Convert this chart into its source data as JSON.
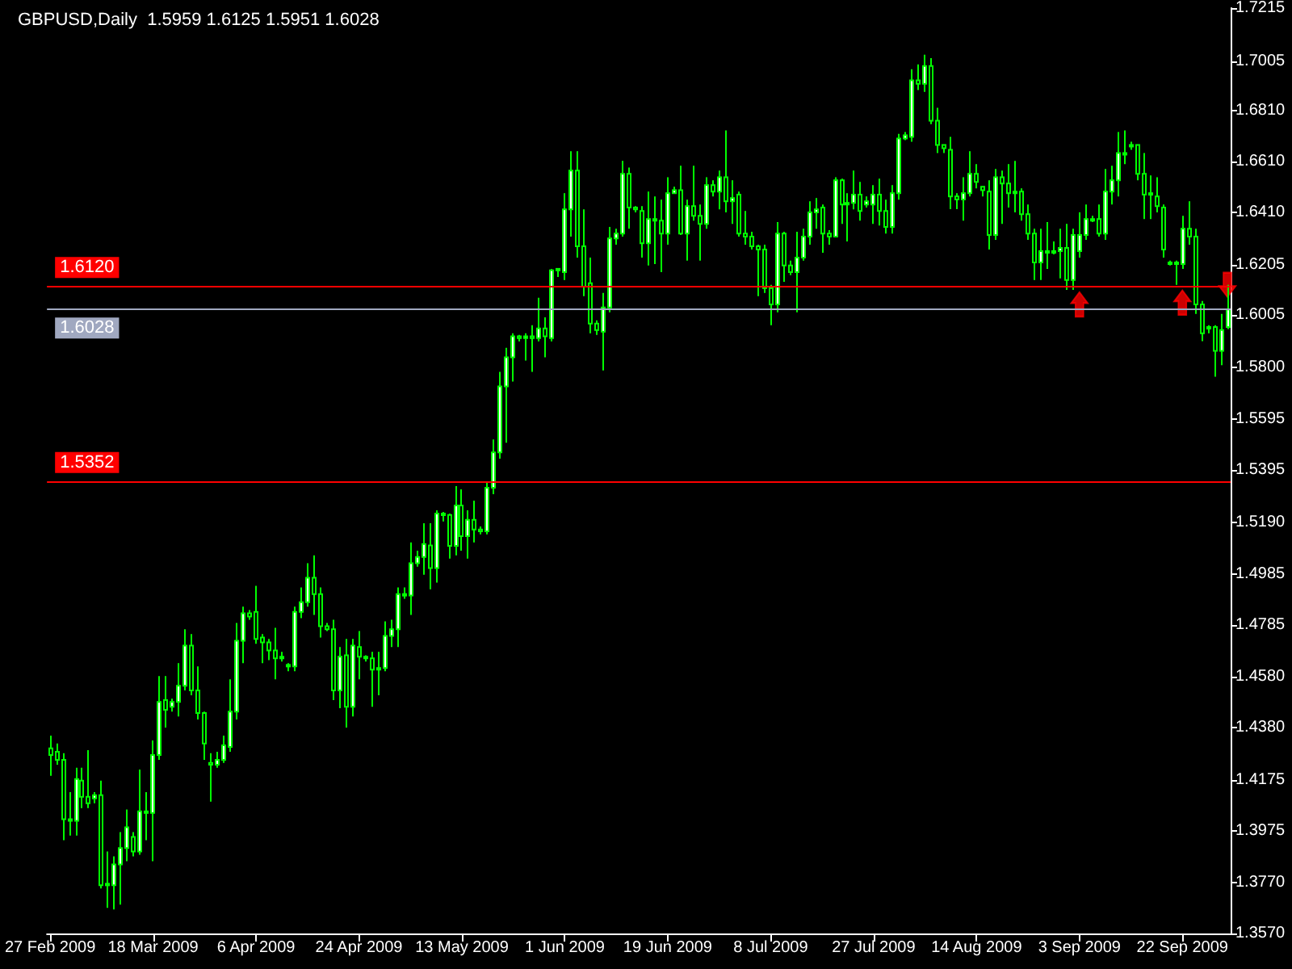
{
  "chart_data": {
    "type": "candlestick",
    "title": "GBPUSD,Daily  1.5959 1.6125 1.5951 1.6028",
    "categories": [
      "27 Feb 2009",
      null,
      null,
      null,
      null,
      null,
      null,
      null,
      null,
      null,
      null,
      null,
      null,
      null,
      null,
      null,
      "18 Mar 2009",
      null,
      null,
      null,
      null,
      null,
      null,
      null,
      null,
      null,
      null,
      null,
      null,
      null,
      null,
      null,
      "6 Apr 2009",
      null,
      null,
      null,
      null,
      null,
      null,
      null,
      null,
      null,
      null,
      null,
      null,
      null,
      null,
      null,
      "24 Apr 2009",
      null,
      null,
      null,
      null,
      null,
      null,
      null,
      null,
      null,
      null,
      null,
      null,
      null,
      null,
      null,
      "13 May 2009",
      null,
      null,
      null,
      null,
      null,
      null,
      null,
      null,
      null,
      null,
      null,
      null,
      null,
      null,
      null,
      "1 Jun 2009",
      null,
      null,
      null,
      null,
      null,
      null,
      null,
      null,
      null,
      null,
      null,
      null,
      null,
      null,
      null,
      "19 Jun 2009",
      null,
      null,
      null,
      null,
      null,
      null,
      null,
      null,
      null,
      null,
      null,
      null,
      null,
      null,
      null,
      "8 Jul 2009",
      null,
      null,
      null,
      null,
      null,
      null,
      null,
      null,
      null,
      null,
      null,
      null,
      null,
      null,
      null,
      "27 Jul 2009",
      null,
      null,
      null,
      null,
      null,
      null,
      null,
      null,
      null,
      null,
      null,
      null,
      null,
      null,
      null,
      "14 Aug 2009",
      null,
      null,
      null,
      null,
      null,
      null,
      null,
      null,
      null,
      null,
      null,
      null,
      null,
      null,
      null,
      "3 Sep 2009",
      null,
      null,
      null,
      null,
      null,
      null,
      null,
      null,
      null,
      null,
      null,
      null,
      null,
      null,
      null,
      "22 Sep 2009",
      null,
      null,
      null,
      null,
      null,
      null,
      null
    ],
    "color": "#00ff00",
    "ohlc": [
      [
        1.4299,
        1.4349,
        1.4191,
        1.4273
      ],
      [
        1.4286,
        1.4318,
        1.4235,
        1.4254
      ],
      [
        1.4254,
        1.428,
        1.3937,
        1.402
      ],
      [
        1.402,
        1.4127,
        1.3956,
        1.4014
      ],
      [
        1.4014,
        1.4223,
        1.3956,
        1.4178
      ],
      [
        1.4172,
        1.4223,
        1.4064,
        1.4108
      ],
      [
        1.4108,
        1.4292,
        1.4064,
        1.4083
      ],
      [
        1.4102,
        1.4127,
        1.4083,
        1.4115
      ],
      [
        1.4115,
        1.4172,
        1.3747,
        1.376
      ],
      [
        1.376,
        1.3893,
        1.3671,
        1.3766
      ],
      [
        1.376,
        1.3874,
        1.3665,
        1.3842
      ],
      [
        1.3842,
        1.3969,
        1.3684,
        1.3906
      ],
      [
        1.3906,
        1.4058,
        1.3855,
        1.3988
      ],
      [
        1.395,
        1.3969,
        1.3874,
        1.3893
      ],
      [
        1.3893,
        1.4216,
        1.388,
        1.4051
      ],
      [
        1.4051,
        1.4127,
        1.3937,
        1.4045
      ],
      [
        1.4045,
        1.433,
        1.3855,
        1.4273
      ],
      [
        1.4273,
        1.4584,
        1.4254,
        1.4482
      ],
      [
        1.4489,
        1.4584,
        1.4381,
        1.4451
      ],
      [
        1.4463,
        1.4495,
        1.4444,
        1.4482
      ],
      [
        1.4482,
        1.4635,
        1.4425,
        1.4546
      ],
      [
        1.4546,
        1.4768,
        1.4527,
        1.4704
      ],
      [
        1.4704,
        1.4749,
        1.4508,
        1.4527
      ],
      [
        1.4527,
        1.4622,
        1.4413,
        1.4438
      ],
      [
        1.4438,
        1.4444,
        1.4254,
        1.4318
      ],
      [
        1.4242,
        1.428,
        1.4089,
        1.4235
      ],
      [
        1.4235,
        1.4286,
        1.4223,
        1.4254
      ],
      [
        1.4254,
        1.4349,
        1.4242,
        1.4311
      ],
      [
        1.4305,
        1.4571,
        1.4286,
        1.4444
      ],
      [
        1.4444,
        1.4793,
        1.4413,
        1.4723
      ],
      [
        1.4723,
        1.4857,
        1.4635,
        1.4831
      ],
      [
        1.4831,
        1.4844,
        1.4806,
        1.4818
      ],
      [
        1.4837,
        1.4939,
        1.4711,
        1.473
      ],
      [
        1.4736,
        1.4749,
        1.4635,
        1.4717
      ],
      [
        1.4717,
        1.473,
        1.4647,
        1.4685
      ],
      [
        1.4685,
        1.4774,
        1.4571,
        1.4654
      ],
      [
        1.4654,
        1.4679,
        1.4641,
        1.466
      ],
      [
        1.4628,
        1.4635,
        1.4603,
        1.4622
      ],
      [
        1.4622,
        1.4857,
        1.4603,
        1.4837
      ],
      [
        1.4837,
        1.4933,
        1.4812,
        1.4875
      ],
      [
        1.4875,
        1.5028,
        1.4857,
        1.4971
      ],
      [
        1.4971,
        1.5059,
        1.4825,
        1.4907
      ],
      [
        1.4907,
        1.4933,
        1.4736,
        1.478
      ],
      [
        1.478,
        1.4793,
        1.4761,
        1.4768
      ],
      [
        1.4768,
        1.4806,
        1.4489,
        1.4527
      ],
      [
        1.4527,
        1.4698,
        1.4457,
        1.466
      ],
      [
        1.4666,
        1.473,
        1.4381,
        1.4463
      ],
      [
        1.4463,
        1.473,
        1.4425,
        1.4704
      ],
      [
        1.4698,
        1.4761,
        1.4571,
        1.466
      ],
      [
        1.466,
        1.4666,
        1.4641,
        1.4654
      ],
      [
        1.4654,
        1.4679,
        1.4463,
        1.4609
      ],
      [
        1.4609,
        1.4679,
        1.4508,
        1.4616
      ],
      [
        1.4616,
        1.4799,
        1.4603,
        1.4742
      ],
      [
        1.4742,
        1.4806,
        1.4698,
        1.4768
      ],
      [
        1.4768,
        1.4933,
        1.4698,
        1.4907
      ],
      [
        1.4907,
        1.4933,
        1.4888,
        1.4901
      ],
      [
        1.4901,
        1.511,
        1.4825,
        1.5028
      ],
      [
        1.5028,
        1.5078,
        1.5015,
        1.5053
      ],
      [
        1.5053,
        1.5186,
        1.4983,
        1.5104
      ],
      [
        1.5098,
        1.5186,
        1.4926,
        1.5009
      ],
      [
        1.5009,
        1.5237,
        1.4952,
        1.5224
      ],
      [
        1.5224,
        1.523,
        1.5193,
        1.5218
      ],
      [
        1.5218,
        1.5224,
        1.5047,
        1.5097
      ],
      [
        1.5097,
        1.5332,
        1.5059,
        1.5256
      ],
      [
        1.5256,
        1.5319,
        1.5078,
        1.5135
      ],
      [
        1.5135,
        1.5237,
        1.5047,
        1.5199
      ],
      [
        1.5199,
        1.5275,
        1.511,
        1.5161
      ],
      [
        1.5161,
        1.5173,
        1.5142,
        1.5154
      ],
      [
        1.5154,
        1.5351,
        1.5142,
        1.5326
      ],
      [
        1.5326,
        1.5516,
        1.53,
        1.5465
      ],
      [
        1.5465,
        1.5782,
        1.544,
        1.5725
      ],
      [
        1.5725,
        1.5877,
        1.5503,
        1.5839
      ],
      [
        1.5839,
        1.5934,
        1.5744,
        1.5922
      ],
      [
        1.5922,
        1.5928,
        1.5902,
        1.5915
      ],
      [
        1.5915,
        1.5934,
        1.5827,
        1.5922
      ],
      [
        1.5922,
        1.5966,
        1.5782,
        1.5915
      ],
      [
        1.5915,
        1.6074,
        1.5902,
        1.5953
      ],
      [
        1.5953,
        1.5997,
        1.5839,
        1.5922
      ],
      [
        1.5915,
        1.6188,
        1.5902,
        1.6182
      ],
      [
        1.6182,
        1.6188,
        1.6156,
        1.6188
      ],
      [
        1.6175,
        1.6486,
        1.6144,
        1.6422
      ],
      [
        1.6422,
        1.6651,
        1.6315,
        1.6575
      ],
      [
        1.6575,
        1.6651,
        1.6232,
        1.6277
      ],
      [
        1.6277,
        1.6422,
        1.608,
        1.6118
      ],
      [
        1.6131,
        1.6232,
        1.5934,
        1.5972
      ],
      [
        1.5972,
        1.5985,
        1.5928,
        1.5947
      ],
      [
        1.594,
        1.6093,
        1.5788,
        1.6036
      ],
      [
        1.6036,
        1.6353,
        1.6017,
        1.6308
      ],
      [
        1.6308,
        1.6346,
        1.6283,
        1.6327
      ],
      [
        1.6327,
        1.6613,
        1.6315,
        1.6562
      ],
      [
        1.6562,
        1.6587,
        1.6346,
        1.6429
      ],
      [
        1.6429,
        1.6435,
        1.641,
        1.6422
      ],
      [
        1.6416,
        1.6435,
        1.6232,
        1.6289
      ],
      [
        1.6289,
        1.6492,
        1.6201,
        1.6384
      ],
      [
        1.6384,
        1.6473,
        1.6207,
        1.6378
      ],
      [
        1.6378,
        1.646,
        1.6175,
        1.6327
      ],
      [
        1.6327,
        1.6549,
        1.6283,
        1.6486
      ],
      [
        1.6486,
        1.6511,
        1.6486,
        1.6498
      ],
      [
        1.6498,
        1.6594,
        1.6321,
        1.6327
      ],
      [
        1.6327,
        1.646,
        1.622,
        1.6435
      ],
      [
        1.6435,
        1.6594,
        1.6378,
        1.6397
      ],
      [
        1.6397,
        1.6441,
        1.622,
        1.6365
      ],
      [
        1.6365,
        1.6549,
        1.6346,
        1.6518
      ],
      [
        1.6518,
        1.6537,
        1.6473,
        1.6492
      ],
      [
        1.6492,
        1.6575,
        1.6422,
        1.6549
      ],
      [
        1.6549,
        1.6733,
        1.641,
        1.6454
      ],
      [
        1.6454,
        1.6537,
        1.6365,
        1.6467
      ],
      [
        1.648,
        1.6492,
        1.6315,
        1.6327
      ],
      [
        1.6327,
        1.6416,
        1.6283,
        1.6315
      ],
      [
        1.6315,
        1.6334,
        1.6264,
        1.6277
      ],
      [
        1.6277,
        1.6283,
        1.608,
        1.6264
      ],
      [
        1.6264,
        1.6283,
        1.6093,
        1.6112
      ],
      [
        1.6112,
        1.6125,
        1.5966,
        1.6048
      ],
      [
        1.6048,
        1.6372,
        1.6017,
        1.6327
      ],
      [
        1.6327,
        1.6334,
        1.6137,
        1.6201
      ],
      [
        1.6201,
        1.622,
        1.6163,
        1.6175
      ],
      [
        1.6175,
        1.6334,
        1.6017,
        1.6232
      ],
      [
        1.6232,
        1.6346,
        1.622,
        1.6315
      ],
      [
        1.6315,
        1.6454,
        1.6283,
        1.641
      ],
      [
        1.641,
        1.6467,
        1.6346,
        1.6422
      ],
      [
        1.6429,
        1.6441,
        1.6251,
        1.6327
      ],
      [
        1.6327,
        1.634,
        1.6283,
        1.6315
      ],
      [
        1.6315,
        1.6549,
        1.6315,
        1.6537
      ],
      [
        1.6537,
        1.6543,
        1.6365,
        1.6441
      ],
      [
        1.6441,
        1.6486,
        1.6296,
        1.6448
      ],
      [
        1.6448,
        1.6575,
        1.6422,
        1.648
      ],
      [
        1.648,
        1.653,
        1.6378,
        1.6416
      ],
      [
        1.6441,
        1.6473,
        1.6429,
        1.6454
      ],
      [
        1.6441,
        1.6518,
        1.6365,
        1.648
      ],
      [
        1.648,
        1.6543,
        1.6359,
        1.6416
      ],
      [
        1.6416,
        1.646,
        1.6327,
        1.6353
      ],
      [
        1.6353,
        1.6518,
        1.6327,
        1.6486
      ],
      [
        1.6486,
        1.672,
        1.646,
        1.6701
      ],
      [
        1.6701,
        1.6727,
        1.6695,
        1.6714
      ],
      [
        1.6708,
        1.6974,
        1.6689,
        1.693
      ],
      [
        1.693,
        1.6993,
        1.6892,
        1.6917
      ],
      [
        1.6917,
        1.7031,
        1.6885,
        1.6987
      ],
      [
        1.6987,
        1.7018,
        1.6758,
        1.6771
      ],
      [
        1.6771,
        1.6822,
        1.6644,
        1.6676
      ],
      [
        1.6676,
        1.6676,
        1.6644,
        1.6663
      ],
      [
        1.6657,
        1.6708,
        1.6423,
        1.6473
      ],
      [
        1.6473,
        1.6486,
        1.6423,
        1.6461
      ],
      [
        1.6461,
        1.6549,
        1.6378,
        1.6486
      ],
      [
        1.6486,
        1.6651,
        1.6473,
        1.6562
      ],
      [
        1.6562,
        1.66,
        1.6505,
        1.653
      ],
      [
        1.6511,
        1.6511,
        1.6473,
        1.6498
      ],
      [
        1.6492,
        1.6537,
        1.6264,
        1.6321
      ],
      [
        1.6321,
        1.6581,
        1.6302,
        1.6549
      ],
      [
        1.6549,
        1.6575,
        1.6365,
        1.6524
      ],
      [
        1.6524,
        1.66,
        1.6429,
        1.6486
      ],
      [
        1.6486,
        1.6613,
        1.641,
        1.6492
      ],
      [
        1.6492,
        1.6505,
        1.6378,
        1.6403
      ],
      [
        1.6403,
        1.6441,
        1.6302,
        1.6327
      ],
      [
        1.6327,
        1.6346,
        1.6144,
        1.6213
      ],
      [
        1.6213,
        1.6346,
        1.6144,
        1.6258
      ],
      [
        1.6258,
        1.6372,
        1.6188,
        1.6251
      ],
      [
        1.6251,
        1.6296,
        1.6245,
        1.6258
      ],
      [
        1.6258,
        1.6346,
        1.615,
        1.627
      ],
      [
        1.627,
        1.6365,
        1.6105,
        1.6144
      ],
      [
        1.6144,
        1.6346,
        1.6105,
        1.6321
      ],
      [
        1.6258,
        1.641,
        1.6232,
        1.6321
      ],
      [
        1.6321,
        1.6441,
        1.6302,
        1.6384
      ],
      [
        1.6384,
        1.6397,
        1.6372,
        1.6378
      ],
      [
        1.6384,
        1.6441,
        1.6315,
        1.6327
      ],
      [
        1.6327,
        1.6581,
        1.6302,
        1.6492
      ],
      [
        1.6492,
        1.6594,
        1.6441,
        1.6537
      ],
      [
        1.6537,
        1.6727,
        1.6473,
        1.6644
      ],
      [
        1.6644,
        1.6733,
        1.66,
        1.6638
      ],
      [
        1.6676,
        1.6689,
        1.6657,
        1.667
      ],
      [
        1.6676,
        1.6676,
        1.6537,
        1.6562
      ],
      [
        1.6562,
        1.6644,
        1.6384,
        1.648
      ],
      [
        1.648,
        1.6556,
        1.6384,
        1.6486
      ],
      [
        1.6473,
        1.6549,
        1.641,
        1.6435
      ],
      [
        1.6429,
        1.6441,
        1.6232,
        1.6264
      ],
      [
        1.6213,
        1.622,
        1.6201,
        1.6207
      ],
      [
        1.6207,
        1.622,
        1.6125,
        1.6213
      ],
      [
        1.6207,
        1.6397,
        1.6188,
        1.6346
      ],
      [
        1.6346,
        1.6454,
        1.6283,
        1.6315
      ],
      [
        1.6315,
        1.6346,
        1.601,
        1.6048
      ],
      [
        1.6048,
        1.6061,
        1.5903,
        1.5934
      ],
      [
        1.5953,
        1.5966,
        1.5934,
        1.5959
      ],
      [
        1.5959,
        1.5966,
        1.5763,
        1.5865
      ],
      [
        1.5865,
        1.601,
        1.5808,
        1.5947
      ],
      [
        1.5959,
        1.6125,
        1.5951,
        1.6028
      ]
    ],
    "series": [
      {
        "type": "scatter",
        "color": "#ff0000",
        "values": [
          null,
          null,
          null,
          null,
          null,
          null,
          null,
          null,
          null,
          null,
          null,
          null,
          null,
          null,
          null,
          null,
          null,
          null,
          null,
          null,
          null,
          null,
          null,
          null,
          null,
          null,
          null,
          null,
          null,
          null,
          null,
          null,
          null,
          null,
          null,
          null,
          null,
          null,
          null,
          null,
          null,
          null,
          null,
          null,
          null,
          null,
          null,
          null,
          null,
          null,
          null,
          null,
          null,
          null,
          null,
          null,
          null,
          null,
          null,
          null,
          null,
          null,
          null,
          null,
          null,
          null,
          null,
          null,
          null,
          null,
          null,
          null,
          null,
          null,
          null,
          null,
          null,
          null,
          null,
          null,
          null,
          null,
          null,
          null,
          null,
          null,
          null,
          null,
          null,
          null,
          null,
          null,
          null,
          null,
          null,
          null,
          null,
          null,
          null,
          null,
          null,
          null,
          null,
          null,
          null,
          null,
          null,
          null,
          null,
          null,
          null,
          null,
          null,
          null,
          null,
          null,
          null,
          null,
          null,
          null,
          null,
          null,
          null,
          null,
          null,
          null,
          null,
          null,
          null,
          null,
          null,
          null,
          null,
          null,
          null,
          null,
          null,
          null,
          null,
          null,
          null,
          null,
          null,
          null,
          null,
          null,
          null,
          null,
          null,
          null,
          null,
          null,
          null,
          null,
          null,
          null,
          null,
          null,
          null,
          null,
          1.6048,
          null,
          null,
          null,
          null,
          null,
          null,
          null,
          null,
          null,
          null,
          null,
          null,
          null,
          null,
          null,
          1.6055,
          null,
          null,
          null,
          null,
          null,
          null,
          1.6125
        ]
      }
    ],
    "ylim": [
      1.357,
      1.7215
    ],
    "yticks": [
      {
        "value": 1.357,
        "label": "1.3570"
      },
      {
        "value": 1.377,
        "label": "1.3770"
      },
      {
        "value": 1.3975,
        "label": "1.3975"
      },
      {
        "value": 1.4175,
        "label": "1.4175"
      },
      {
        "value": 1.438,
        "label": "1.4380"
      },
      {
        "value": 1.458,
        "label": "1.4580"
      },
      {
        "value": 1.4785,
        "label": "1.4785"
      },
      {
        "value": 1.4985,
        "label": "1.4985"
      },
      {
        "value": 1.519,
        "label": "1.5190"
      },
      {
        "value": 1.5395,
        "label": "1.5395"
      },
      {
        "value": 1.5595,
        "label": "1.5595"
      },
      {
        "value": 1.58,
        "label": "1.5800"
      },
      {
        "value": 1.6005,
        "label": "1.6005"
      },
      {
        "value": 1.6205,
        "label": "1.6205"
      },
      {
        "value": 1.641,
        "label": "1.6410"
      },
      {
        "value": 1.661,
        "label": "1.6610"
      },
      {
        "value": 1.681,
        "label": "1.6810"
      },
      {
        "value": 1.7005,
        "label": "1.7005"
      },
      {
        "value": 1.7215,
        "label": "1.7215"
      }
    ],
    "ref_lines": [
      {
        "axis": "y",
        "value": 1.612,
        "label": "1.6120",
        "color": "#ff0000"
      },
      {
        "axis": "y",
        "value": 1.6028,
        "label": "1.6028",
        "color": "#a0a8c0"
      },
      {
        "axis": "y",
        "value": 1.5352,
        "label": "1.5352",
        "color": "#ff0000"
      }
    ],
    "grid": false
  }
}
